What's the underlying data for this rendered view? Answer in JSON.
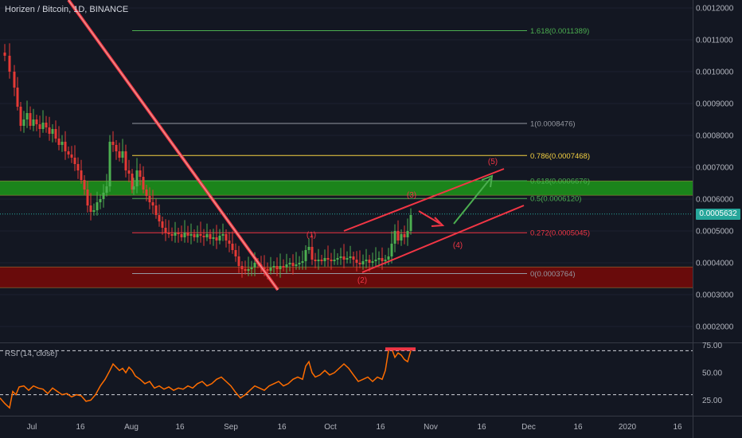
{
  "header": {
    "symbol_title": "Horizen / Bitcoin, 1D, BINANCE"
  },
  "rsi_panel": {
    "title": "RSI (14, close)",
    "ticks": [
      "75.00",
      "50.00",
      "25.00"
    ],
    "upper": 70,
    "lower": 30
  },
  "price_tag": {
    "value": "0.0005632",
    "color": "#26a69a"
  },
  "chart_data": {
    "type": "candlestick",
    "y_ticks": [
      "0.0012000",
      "0.0011000",
      "0.0010000",
      "0.0009000",
      "0.0008000",
      "0.0007000",
      "0.0006000",
      "0.0005000",
      "0.0004000",
      "0.0003000",
      "0.0002000"
    ],
    "ylim": [
      0.00015,
      0.00122
    ],
    "x_ticks": [
      "Jul",
      "16",
      "Aug",
      "16",
      "Sep",
      "16",
      "Oct",
      "16",
      "Nov",
      "16",
      "Dec",
      "16",
      "2020",
      "16"
    ],
    "fib_levels": [
      {
        "label": "1.618(0.0011389)",
        "value": 0.0011389,
        "color": "#4caf50"
      },
      {
        "label": "1(0.0008476)",
        "value": 0.0008476,
        "color": "#9598a1"
      },
      {
        "label": "0.786(0.0007468)",
        "value": 0.0007468,
        "color": "#f5d142"
      },
      {
        "label": "0.618(0.0006676)",
        "value": 0.0006676,
        "color": "#4caf50"
      },
      {
        "label": "0.5(0.0006120)",
        "value": 0.000612,
        "color": "#4caf50"
      },
      {
        "label": "0.272(0.0005045)",
        "value": 0.0005045,
        "color": "#f23645"
      },
      {
        "label": "0(0.0003764)",
        "value": 0.0003764,
        "color": "#9598a1"
      }
    ],
    "zones": [
      {
        "from": 0.000622,
        "to": 0.000667,
        "color": "#1b8a1b"
      },
      {
        "from": 0.000332,
        "to": 0.000397,
        "color": "#6e0b0b"
      }
    ],
    "current_price": 0.0005632,
    "wave_labels": [
      {
        "label": "(1)",
        "color": "#f23645"
      },
      {
        "label": "(2)",
        "color": "#f23645"
      },
      {
        "label": "(3)",
        "color": "#f23645"
      },
      {
        "label": "(4)",
        "color": "#f23645"
      },
      {
        "label": "(5)",
        "color": "#f23645"
      }
    ],
    "colors": {
      "up": "#26a69a",
      "down": "#ef5350",
      "bull_candle": "#4caf50",
      "bear_candle": "#e53935",
      "rsi_line": "#ff6d00"
    }
  }
}
